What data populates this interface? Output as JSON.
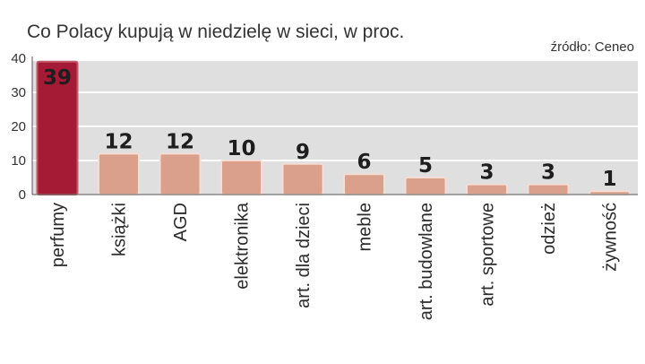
{
  "chart_data": {
    "type": "bar",
    "title": "Co Polacy kupują w niedzielę w  sieci, w proc.",
    "source": "źródło: Ceneo",
    "categories": [
      "perfumy",
      "książki",
      "AGD",
      "elektronika",
      "art. dla dzieci",
      "meble",
      "art. budowlane",
      "art. sportowe",
      "odzież",
      "żywność"
    ],
    "values": [
      39,
      12,
      12,
      10,
      9,
      6,
      5,
      3,
      3,
      1
    ],
    "value_labels": [
      "39",
      "12",
      "12",
      "10",
      "9",
      "6",
      "5",
      "3",
      "3",
      "1"
    ],
    "yticks": [
      "0",
      "10",
      "20",
      "30",
      "40"
    ],
    "ylim": [
      0,
      40
    ],
    "grid": true,
    "highlight_index": 0,
    "colors": {
      "bar": "#dba08b",
      "bar_edge": "#f3ddd4",
      "highlight": "#a51a34",
      "highlight_edge": "#c25a6a",
      "plot_bg": "#dfdfdf",
      "grid": "#ffffff",
      "axis": "#555555"
    }
  }
}
